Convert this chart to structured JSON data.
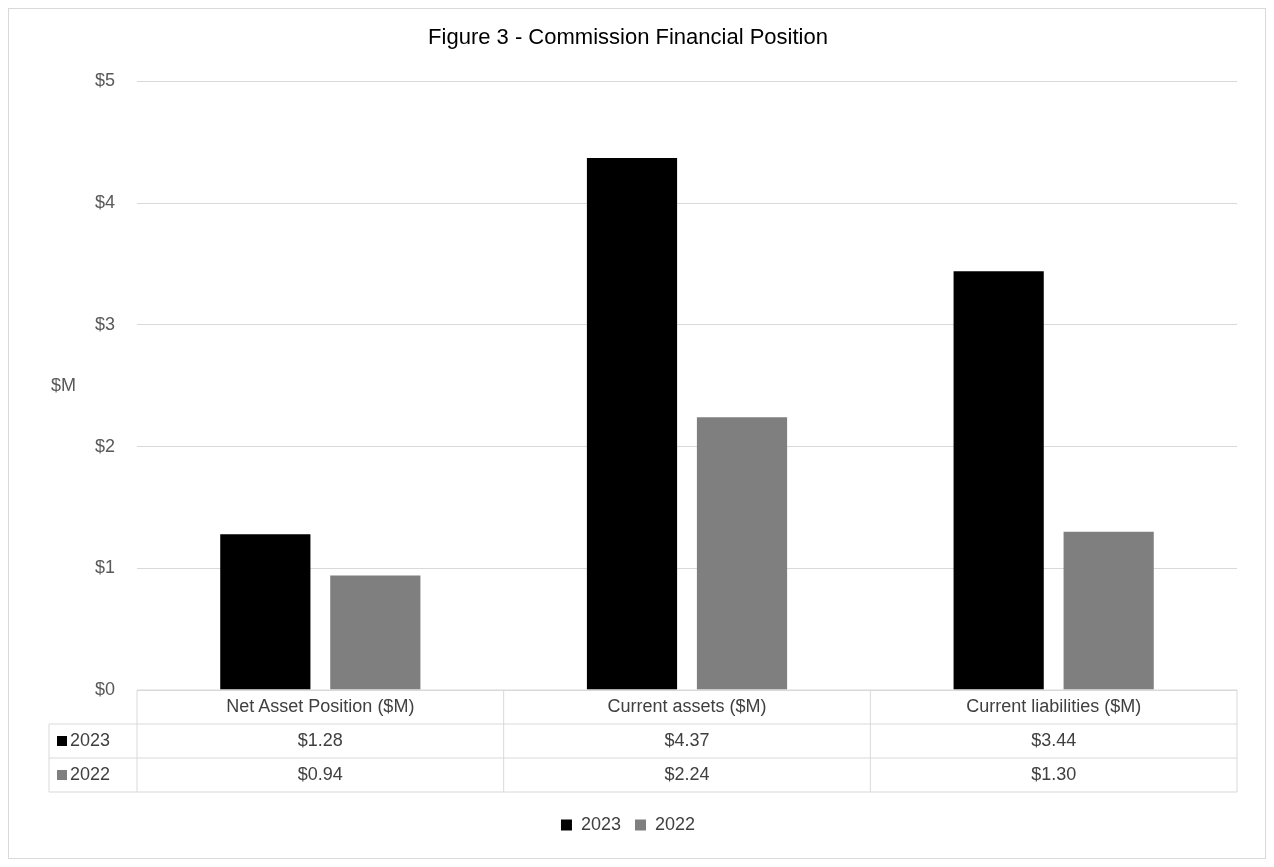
{
  "chart_data": {
    "type": "bar",
    "title": "Figure 3 - Commission Financial Position",
    "ylabel": "$M",
    "categories": [
      "Net Asset Position ($M)",
      "Current assets ($M)",
      "Current liabilities ($M)"
    ],
    "series": [
      {
        "name": "2023",
        "color": "#000000",
        "values": [
          1.28,
          4.37,
          3.44
        ],
        "value_labels": [
          "$1.28",
          "$4.37",
          "$3.44"
        ]
      },
      {
        "name": "2022",
        "color": "#7f7f7f",
        "values": [
          0.94,
          2.24,
          1.3
        ],
        "value_labels": [
          "$0.94",
          "$2.24",
          "$1.30"
        ]
      }
    ],
    "ylim": [
      0,
      5
    ],
    "yticks": [
      {
        "value": 0,
        "label": "$0"
      },
      {
        "value": 1,
        "label": "$1"
      },
      {
        "value": 2,
        "label": "$2"
      },
      {
        "value": 3,
        "label": "$3"
      },
      {
        "value": 4,
        "label": "$4"
      },
      {
        "value": 5,
        "label": "$5"
      }
    ],
    "grid": "y",
    "legend": "bottom"
  }
}
